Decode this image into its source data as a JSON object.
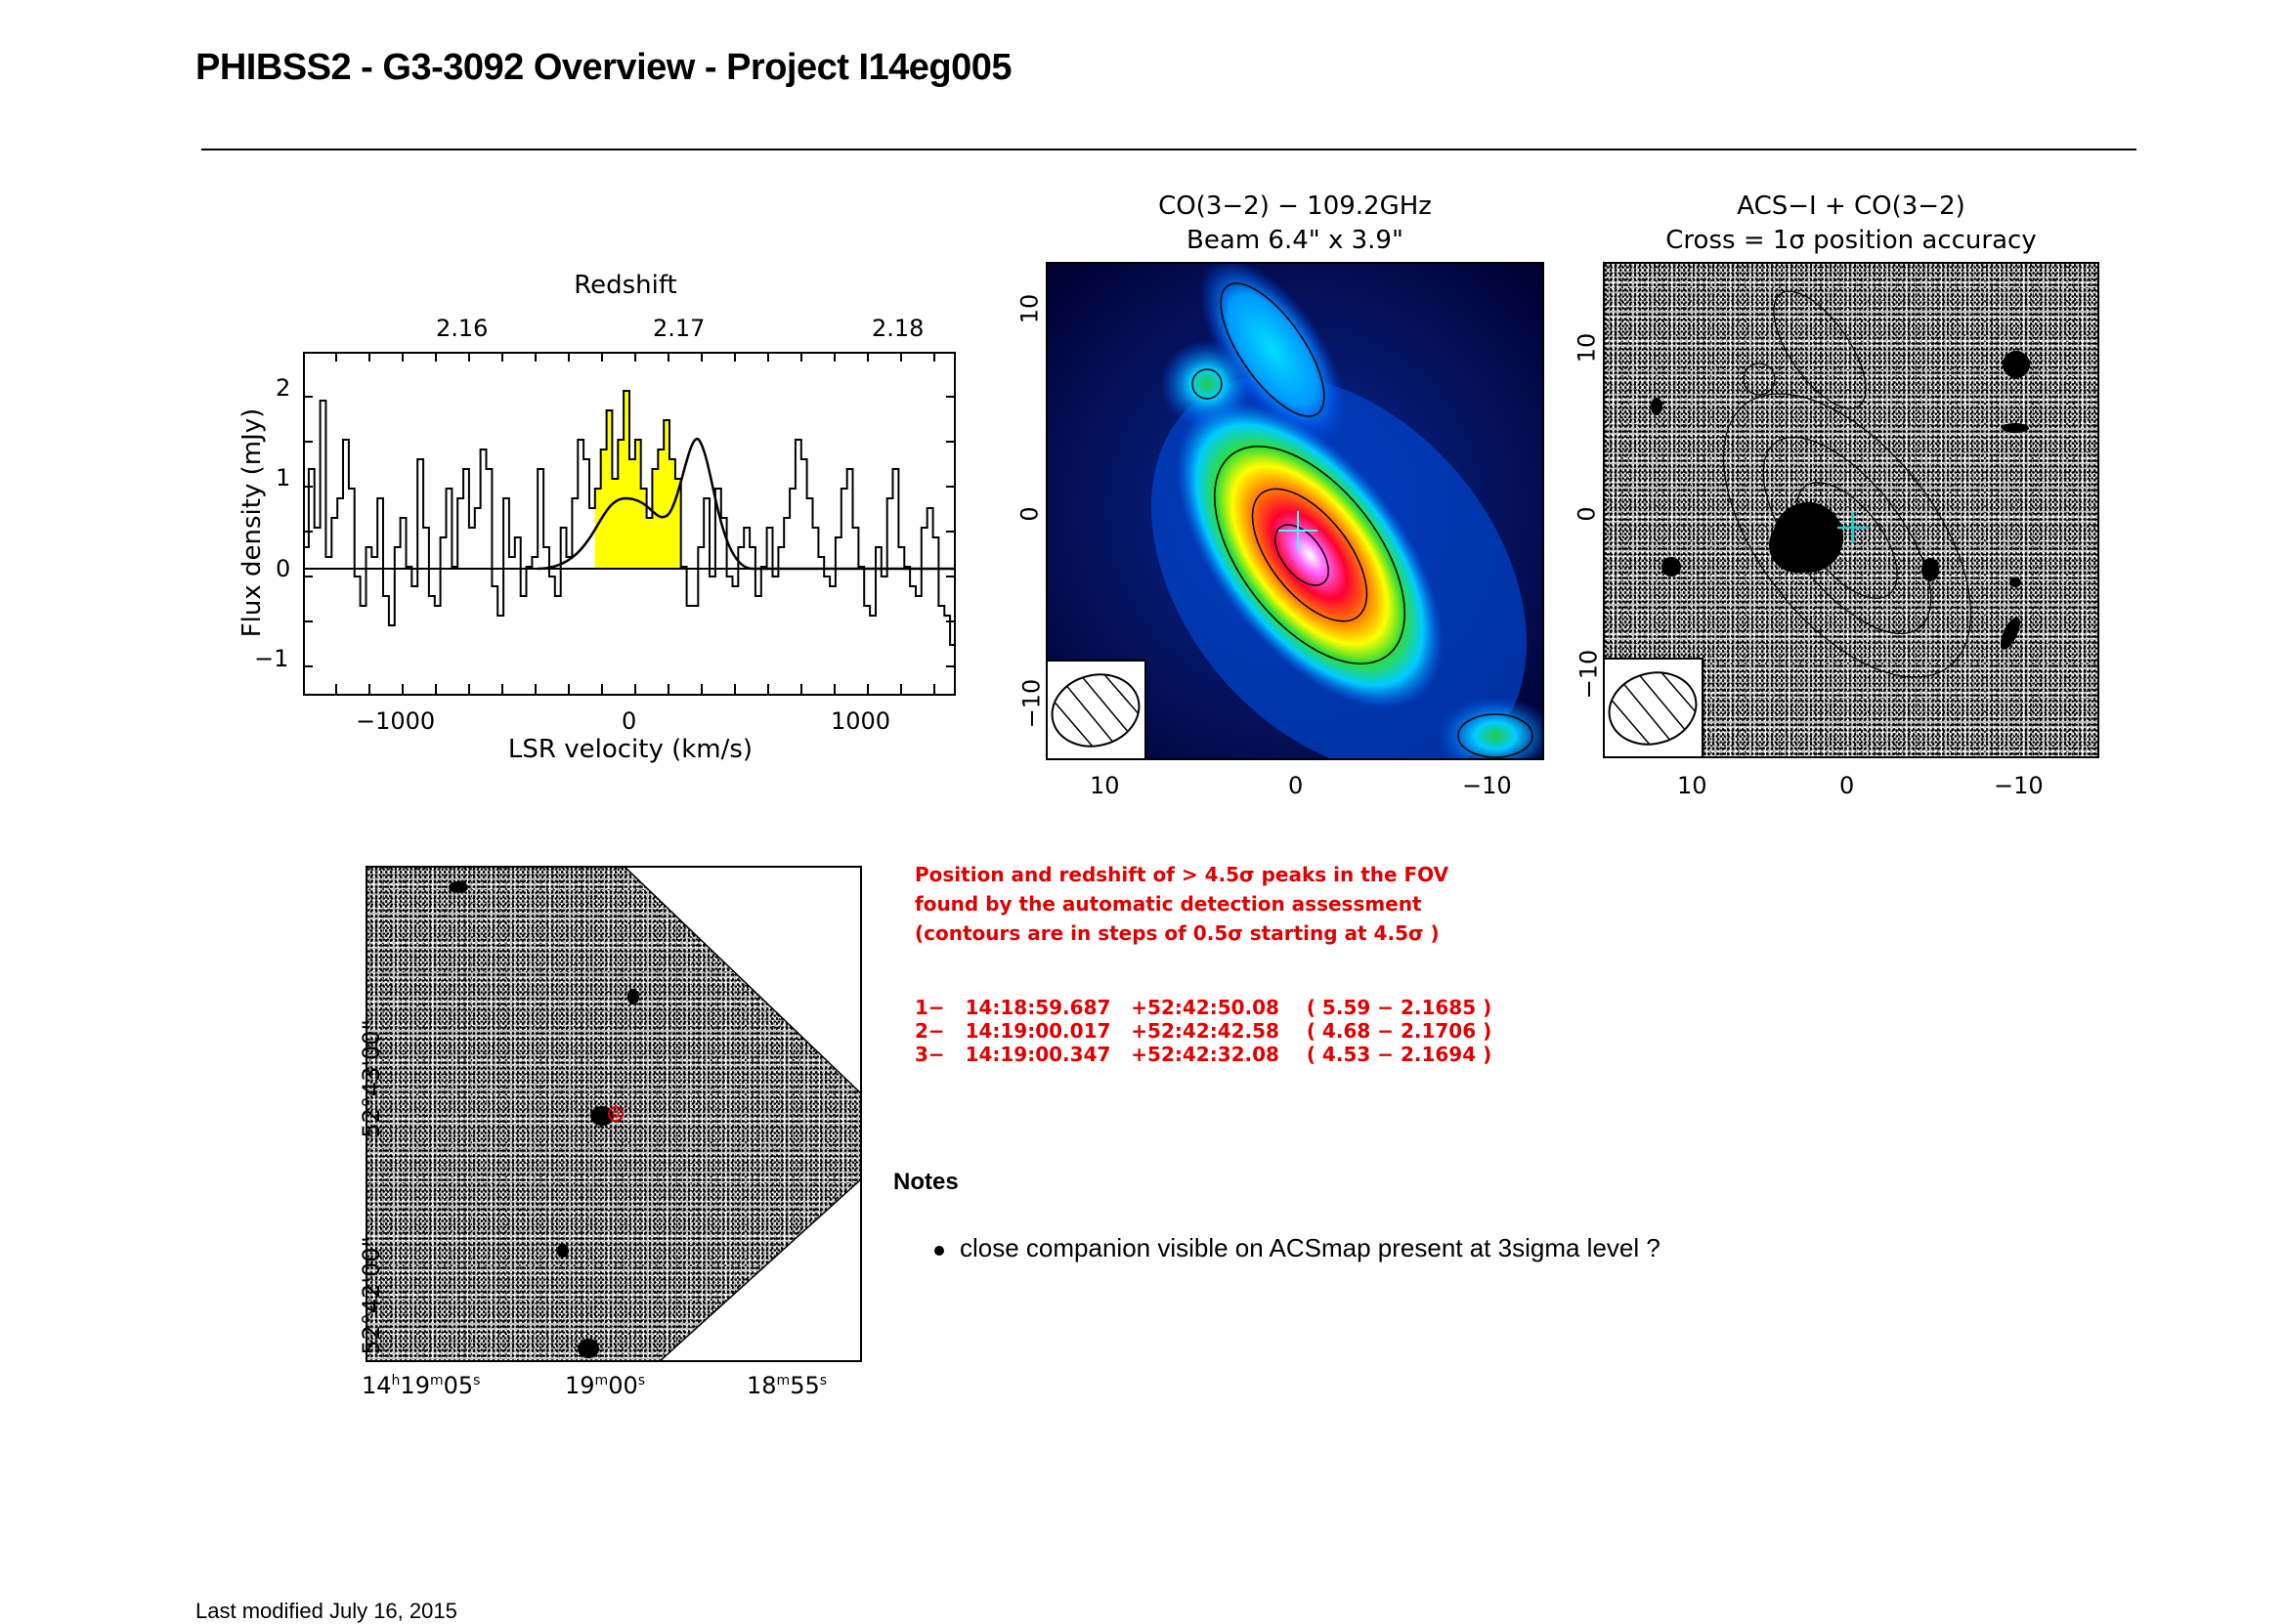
{
  "page_title": "PHIBSS2 - G3-3092 Overview - Project I14eg005",
  "spectrum": {
    "top_axis_label": "Redshift",
    "top_ticks": [
      "2.16",
      "2.17",
      "2.18"
    ],
    "xlabel": "LSR velocity (km/s)",
    "ylabel": "Flux density (mJy)",
    "x_ticks": [
      "−1000",
      "0",
      "1000"
    ],
    "y_ticks": [
      "2",
      "1",
      "0",
      "−1"
    ],
    "line_highlight_color": "#ffff00"
  },
  "co_map": {
    "title_line1": "CO(3−2) − 109.2GHz",
    "title_line2": "Beam 6.4\" x 3.9\"",
    "x_ticks": [
      "10",
      "0",
      "−10"
    ],
    "y_ticks": [
      "10",
      "0",
      "−10"
    ]
  },
  "acs_map": {
    "title_line1": "ACS−I + CO(3−2)",
    "title_line2": "Cross = 1σ position accuracy",
    "x_ticks": [
      "10",
      "0",
      "−10"
    ],
    "y_ticks": [
      "10",
      "0",
      "−10"
    ],
    "cross_color": "#22cccc"
  },
  "field_map": {
    "y_ticks": [
      "52°43'00\"",
      "52°42'00\""
    ],
    "x_ticks": [
      "14h19m05s",
      "19m00s",
      "18m55s"
    ],
    "x_tick_parts": [
      {
        "a": "14",
        "a_sup": "h",
        "b": "19",
        "b_sup": "m",
        "c": "05",
        "c_sup": "s"
      },
      {
        "a": "",
        "a_sup": "",
        "b": "19",
        "b_sup": "m",
        "c": "00",
        "c_sup": "s"
      },
      {
        "a": "",
        "a_sup": "",
        "b": "18",
        "b_sup": "m",
        "c": "55",
        "c_sup": "s"
      }
    ]
  },
  "detection": {
    "intro_line1": "Position and redshift of > 4.5σ peaks in the FOV",
    "intro_line2": "found by the automatic detection assessment",
    "intro_line3": "(contours are in steps of 0.5σ starting at 4.5σ )",
    "peaks": [
      "1−   14:18:59.687   +52:42:50.08    ( 5.59 − 2.1685 )",
      "2−   14:19:00.017   +52:42:42.58    ( 4.68 − 2.1706 )",
      "3−   14:19:00.347   +52:42:32.08    ( 4.53 − 2.1694 )"
    ],
    "text_color": "#e00000"
  },
  "notes": {
    "heading": "Notes",
    "items": [
      "close companion visible on ACSmap present at 3sigma level ?"
    ]
  },
  "footer": "Last modified July 16, 2015"
}
